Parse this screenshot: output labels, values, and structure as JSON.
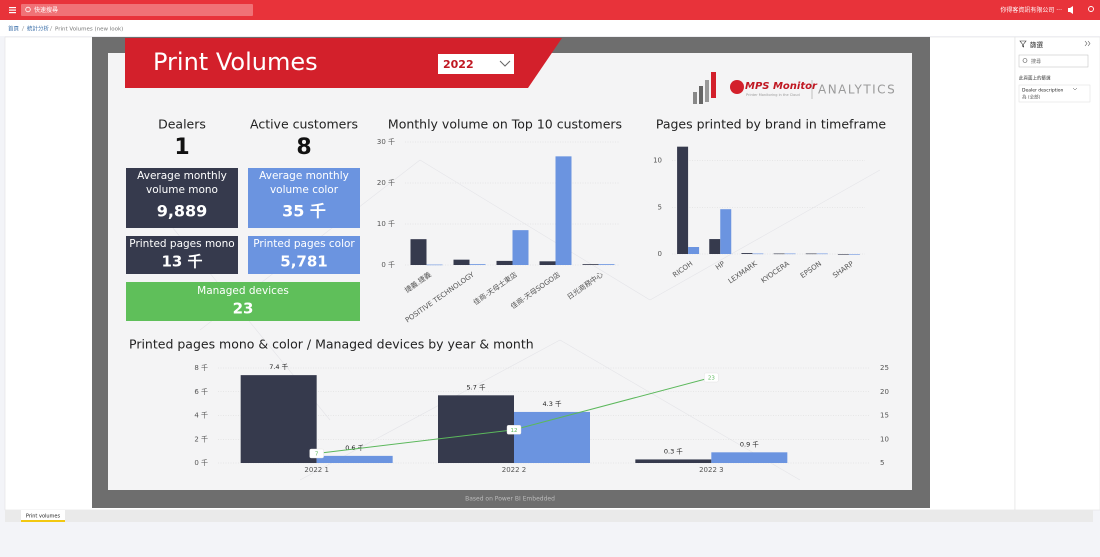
{
  "topbar": {
    "search": "快速搜尋",
    "company": "你得客資訊有限公司 ···"
  },
  "breadcrumb": [
    "首頁",
    "統計分析",
    "Print Volumes (new look)"
  ],
  "report": {
    "title": "Print Volumes",
    "year": "2022",
    "logo": {
      "brand": "MPS Monitor",
      "tagline": "Printer Monitoring in the Cloud",
      "product": "ANALYTICS"
    },
    "kpis": [
      {
        "label": "Dealers",
        "value": "1"
      },
      {
        "label": "Active customers",
        "value": "8"
      },
      {
        "label": "Average monthly volume mono",
        "value": "9,889"
      },
      {
        "label": "Average monthly volume color",
        "value": "35 千"
      },
      {
        "label": "Printed pages mono",
        "value": "13 千"
      },
      {
        "label": "Printed pages color",
        "value": "5,781"
      },
      {
        "label": "Managed devices",
        "value": "23"
      }
    ],
    "footer": "Based on Power BI Embedded"
  },
  "tabs": [
    "Print volumes"
  ],
  "filters": {
    "title": "篩選",
    "search": "搜尋",
    "section": "此頁面上的篩選",
    "field": "Dealer description",
    "state": "為 (全部)"
  },
  "chart_data": [
    {
      "type": "bar",
      "title": "Monthly volume on Top 10 customers",
      "categories": [
        "捷義.捷義",
        "POSITIVE TECHNOLOGY",
        "佳商-天母士東店",
        "佳商-天母SOGO店",
        "日光商務中心"
      ],
      "series": [
        {
          "color": "#363a4d",
          "values": [
            6.3,
            1.3,
            1.0,
            0.9,
            0.2
          ]
        },
        {
          "color": "#6b94e0",
          "values": [
            0.1,
            0.2,
            8.5,
            26.5,
            0.2
          ]
        }
      ],
      "ylim": [
        0,
        30
      ],
      "yticks": [
        {
          "value": 0,
          "label": "0 千"
        },
        {
          "value": 10,
          "label": "10 千"
        },
        {
          "value": 20,
          "label": "20 千"
        },
        {
          "value": 30,
          "label": "30 千"
        }
      ],
      "grid": true
    },
    {
      "type": "bar",
      "title": "Pages printed by brand in timeframe",
      "categories": [
        "RICOH",
        "HP",
        "LEXMARK",
        "KYOCERA",
        "EPSON",
        "SHARP"
      ],
      "series": [
        {
          "color": "#363a4d",
          "values": [
            11.5,
            1.6,
            0.1,
            0.05,
            0.05,
            0
          ]
        },
        {
          "color": "#6b94e0",
          "values": [
            0.75,
            4.8,
            0.05,
            0.05,
            0.05,
            0
          ]
        }
      ],
      "ylim": [
        0,
        12
      ],
      "yticks": [
        0,
        5,
        10
      ],
      "grid": true
    },
    {
      "type": "bar",
      "title": "Printed pages mono & color / Managed devices by year & month",
      "categories": [
        "2022 1",
        "2022 2",
        "2022 3"
      ],
      "series": [
        {
          "color": "#363a4d",
          "values": [
            7.4,
            5.7,
            0.3
          ],
          "value_labels": [
            "7.4 千",
            "5.7 千",
            "0.3 千"
          ]
        },
        {
          "color": "#6b94e0",
          "values": [
            0.6,
            4.3,
            0.9
          ],
          "value_labels": [
            "0.6 千",
            "4.3 千",
            "0.9 千"
          ]
        },
        {
          "type": "line",
          "axis": "y2",
          "color": "#5cb85c",
          "values": [
            7,
            12,
            23
          ]
        }
      ],
      "ylim": [
        0,
        8
      ],
      "yticks": [
        {
          "value": 0,
          "label": "0 千"
        },
        {
          "value": 2,
          "label": "2 千"
        },
        {
          "value": 4,
          "label": "4 千"
        },
        {
          "value": 6,
          "label": "6 千"
        },
        {
          "value": 8,
          "label": "8 千"
        }
      ],
      "y2lim": [
        5,
        25
      ],
      "y2ticks": [
        5,
        10,
        15,
        20,
        25
      ],
      "grid": true
    }
  ]
}
